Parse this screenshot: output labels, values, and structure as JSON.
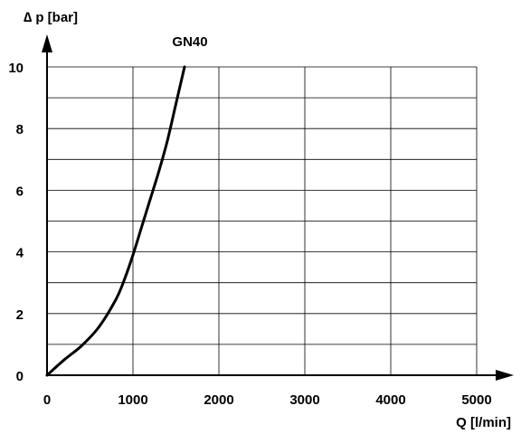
{
  "chart_data": {
    "type": "line",
    "title": "",
    "xlabel": "Q [l/min]",
    "ylabel": "∆ p [bar]",
    "xlim": [
      0,
      5000
    ],
    "ylim": [
      0,
      10
    ],
    "grid": true,
    "x_ticks": [
      "0",
      "1000",
      "2000",
      "3000",
      "4000",
      "5000"
    ],
    "y_ticks": [
      "0",
      "2",
      "4",
      "6",
      "8",
      "10"
    ],
    "series": [
      {
        "name": "GN40",
        "color": "#000000",
        "x": [
          0,
          200,
          400,
          600,
          800,
          900,
          1000,
          1100,
          1200,
          1300,
          1400,
          1500,
          1600
        ],
        "y": [
          0,
          0.5,
          0.95,
          1.55,
          2.45,
          3.1,
          3.9,
          4.8,
          5.7,
          6.6,
          7.6,
          8.8,
          10.0
        ]
      }
    ]
  }
}
